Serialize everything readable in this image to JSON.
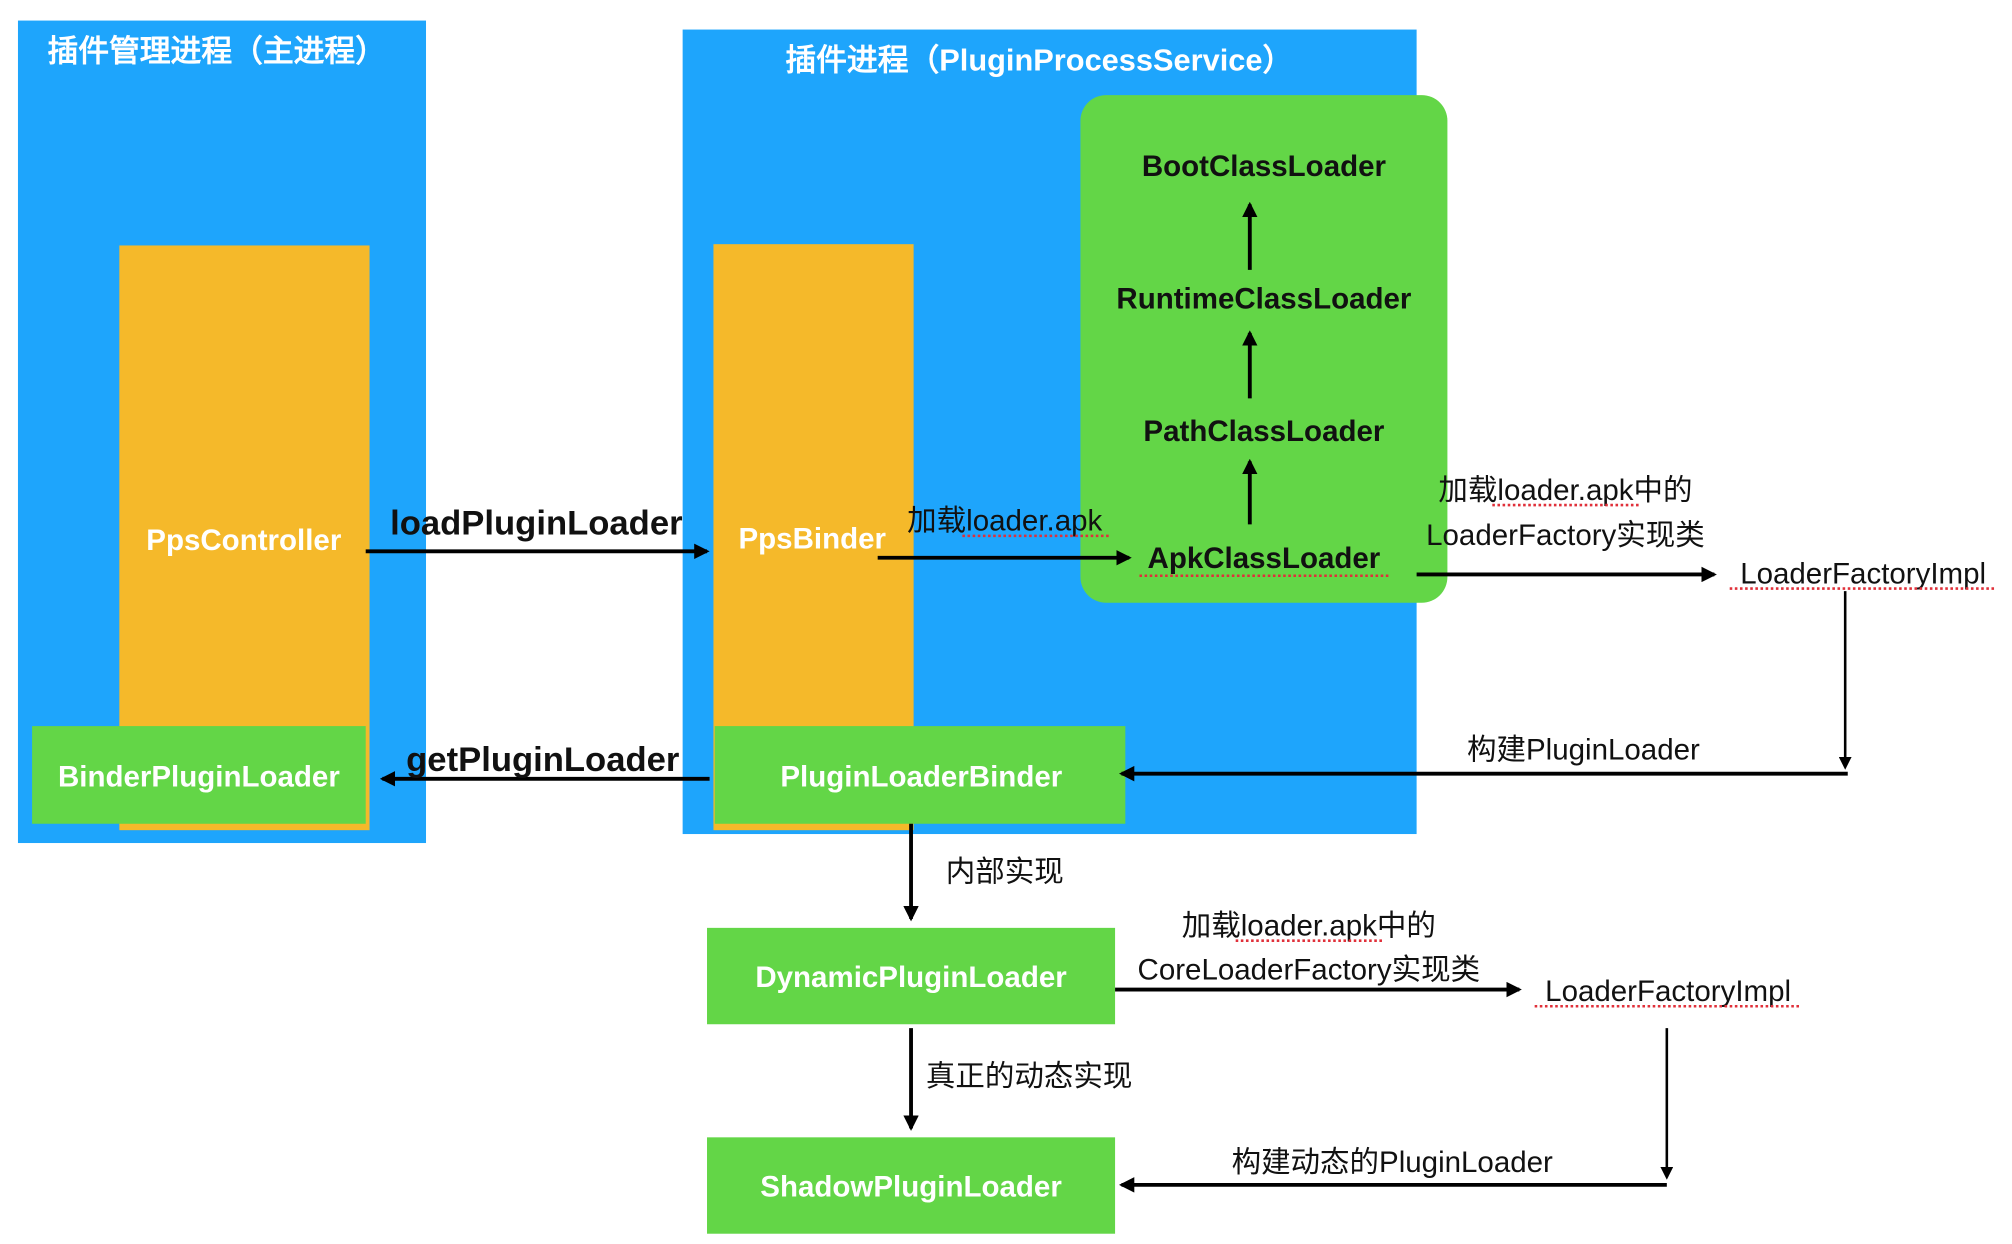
{
  "colors": {
    "process_blue": "#1ea5fc",
    "component_orange": "#f5b92a",
    "loader_green": "#63d647",
    "arrow": "#000000",
    "spellcheck_underline": "#e0303a"
  },
  "main_process": {
    "title": "插件管理进程（主进程）",
    "controller": "PpsController",
    "binder_loader": "BinderPluginLoader"
  },
  "plugin_process": {
    "title": "插件进程（PluginProcessService）",
    "binder": "PpsBinder",
    "plugin_loader_binder": "PluginLoaderBinder",
    "classloaders": [
      "BootClassLoader",
      "RuntimeClassLoader",
      "PathClassLoader",
      "ApkClassLoader"
    ]
  },
  "edges": {
    "load_plugin_loader": "loadPluginLoader",
    "get_plugin_loader": "getPluginLoader",
    "load_apk": "加载loader.apk",
    "load_factory_line1": "加载loader.apk中的",
    "load_factory_line2": "LoaderFactory实现类",
    "build_plugin_loader": "构建PluginLoader",
    "internal_impl": "内部实现",
    "load_core_line1": "加载loader.apk中的",
    "load_core_line2": "CoreLoaderFactory实现类",
    "real_dynamic_impl": "真正的动态实现",
    "build_dynamic_plugin_loader": "构建动态的PluginLoader"
  },
  "nodes": {
    "loader_factory_impl_1": "LoaderFactoryImpl",
    "loader_factory_impl_2": "LoaderFactoryImpl",
    "dynamic_plugin_loader": "DynamicPluginLoader",
    "shadow_plugin_loader": "ShadowPluginLoader"
  }
}
